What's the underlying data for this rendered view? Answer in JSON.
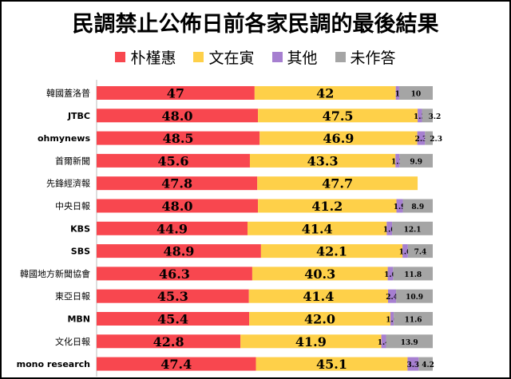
{
  "chart_data": {
    "type": "bar",
    "orientation": "horizontal",
    "stacked": true,
    "title": "民調禁止公佈日前各家民調的最後結果",
    "xlim": [
      0,
      100
    ],
    "legend_position": "top",
    "categories": [
      "韓國蓋洛普",
      "JTBC",
      "ohmynews",
      "首爾新聞",
      "先鋒經濟報",
      "中央日報",
      "KBS",
      "SBS",
      "韓國地方新聞協會",
      "東亞日報",
      "MBN",
      "文化日報",
      "mono research"
    ],
    "series": [
      {
        "name": "朴槿惠",
        "color": "#f8474f",
        "values": [
          47,
          48.0,
          48.5,
          45.6,
          47.8,
          48.0,
          44.9,
          48.9,
          46.3,
          45.3,
          45.4,
          42.8,
          47.4
        ],
        "labels": [
          "47",
          "48.0",
          "48.5",
          "45.6",
          "47.8",
          "48.0",
          "44.9",
          "48.9",
          "46.3",
          "45.3",
          "45.4",
          "42.8",
          "47.4"
        ]
      },
      {
        "name": "文在寅",
        "color": "#fed049",
        "values": [
          42,
          47.5,
          46.9,
          43.3,
          47.7,
          41.2,
          41.4,
          42.1,
          40.3,
          41.4,
          42.0,
          41.9,
          45.1
        ],
        "labels": [
          "42",
          "47.5",
          "46.9",
          "43.3",
          "47.7",
          "41.2",
          "41.4",
          "42.1",
          "40.3",
          "41.4",
          "42.0",
          "41.9",
          "45.1"
        ]
      },
      {
        "name": "其他",
        "color": "#a67fd0",
        "values": [
          1,
          1.3,
          2.3,
          1.2,
          0,
          1.9,
          1.6,
          1.6,
          1.6,
          2.4,
          1.0,
          1.4,
          3.3
        ],
        "labels": [
          "1",
          "1.3",
          "2.3",
          "1.2",
          "",
          "1.9",
          "1.6",
          "1.6",
          "1.6",
          "2.4",
          "1.0",
          "1.4",
          "3.3"
        ]
      },
      {
        "name": "未作答",
        "color": "#a5a5a5",
        "values": [
          10,
          3.2,
          2.3,
          9.9,
          0,
          8.9,
          12.1,
          7.4,
          11.8,
          10.9,
          11.6,
          13.9,
          4.2
        ],
        "labels": [
          "10",
          "3.2",
          "2.3",
          "9.9",
          "",
          "8.9",
          "12.1",
          "7.4",
          "11.8",
          "10.9",
          "11.6",
          "13.9",
          "4.2"
        ]
      }
    ]
  }
}
